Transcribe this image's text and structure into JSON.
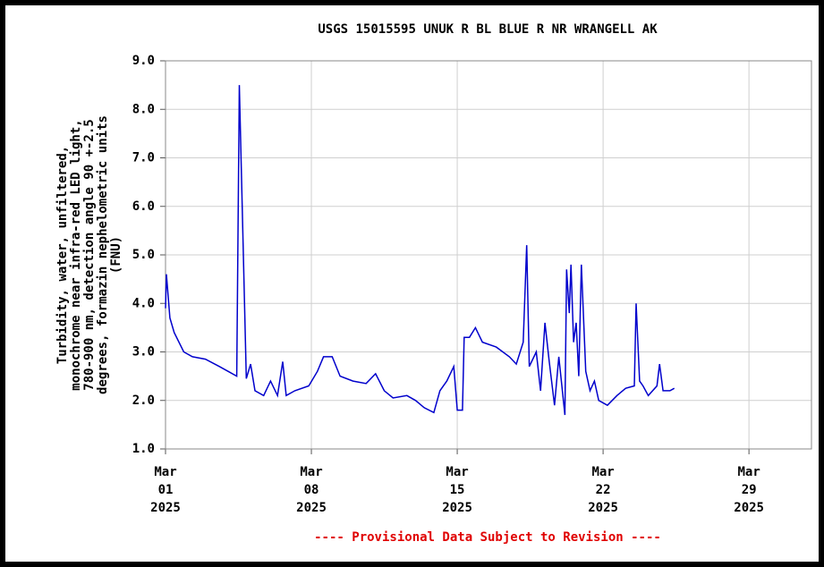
{
  "chart_data": {
    "type": "line",
    "title": "USGS 15015595 UNUK R BL BLUE R NR WRANGELL AK",
    "ylabel": [
      "Turbidity, water, unfiltered,",
      "monochrome near infra-red LED light,",
      "780-900 nm, detection angle 90 +-2.5",
      "degrees, formazin nephelometric units",
      "(FNU)"
    ],
    "footnote": "---- Provisional Data Subject to Revision ----",
    "color": "#0000cc",
    "grid": true,
    "xlim": [
      "2025-03-01T00:00",
      "2025-04-01T00:00"
    ],
    "xticks": [
      {
        "value": "2025-03-01T00:00",
        "label": "Mar 01 2025"
      },
      {
        "value": "2025-03-08T00:00",
        "label": "Mar 08 2025"
      },
      {
        "value": "2025-03-15T00:00",
        "label": "Mar 15 2025"
      },
      {
        "value": "2025-03-22T00:00",
        "label": "Mar 22 2025"
      },
      {
        "value": "2025-03-29T00:00",
        "label": "Mar 29 2025"
      }
    ],
    "ylim": [
      1,
      9
    ],
    "yticks": [
      {
        "value": 1,
        "label": "1.0"
      },
      {
        "value": 2,
        "label": "2.0"
      },
      {
        "value": 3,
        "label": "3.0"
      },
      {
        "value": 4,
        "label": "4.0"
      },
      {
        "value": 5,
        "label": "5.0"
      },
      {
        "value": 6,
        "label": "6.0"
      },
      {
        "value": 7,
        "label": "7.0"
      },
      {
        "value": 8,
        "label": "8.0"
      },
      {
        "value": 9,
        "label": "9.0"
      }
    ],
    "x": [
      "2025-03-01T00:00",
      "2025-03-01T01:00",
      "2025-03-01T05:00",
      "2025-03-01T10:00",
      "2025-03-01T21:00",
      "2025-03-02T07:00",
      "2025-03-02T22:00",
      "2025-03-03T14:00",
      "2025-03-04T00:00",
      "2025-03-04T10:00",
      "2025-03-04T13:00",
      "2025-03-04T21:00",
      "2025-03-05T02:00",
      "2025-03-05T07:00",
      "2025-03-05T17:00",
      "2025-03-06T01:00",
      "2025-03-06T09:00",
      "2025-03-06T15:00",
      "2025-03-06T19:00",
      "2025-03-07T05:00",
      "2025-03-07T21:00",
      "2025-03-08T07:00",
      "2025-03-08T14:00",
      "2025-03-09T00:00",
      "2025-03-09T09:00",
      "2025-03-10T00:00",
      "2025-03-10T15:00",
      "2025-03-11T02:00",
      "2025-03-11T12:00",
      "2025-03-11T22:00",
      "2025-03-12T14:00",
      "2025-03-13T00:00",
      "2025-03-13T10:00",
      "2025-03-13T21:00",
      "2025-03-14T04:00",
      "2025-03-14T12:00",
      "2025-03-14T20:00",
      "2025-03-15T00:00",
      "2025-03-15T06:00",
      "2025-03-15T08:00",
      "2025-03-15T14:00",
      "2025-03-15T21:00",
      "2025-03-16T05:00",
      "2025-03-16T21:00",
      "2025-03-17T12:00",
      "2025-03-17T20:00",
      "2025-03-18T04:00",
      "2025-03-18T08:00",
      "2025-03-18T11:00",
      "2025-03-18T19:00",
      "2025-03-19T00:00",
      "2025-03-19T05:00",
      "2025-03-19T10:00",
      "2025-03-19T16:00",
      "2025-03-19T21:00",
      "2025-03-20T04:00",
      "2025-03-20T06:00",
      "2025-03-20T09:00",
      "2025-03-20T11:00",
      "2025-03-20T14:00",
      "2025-03-20T17:00",
      "2025-03-20T20:00",
      "2025-03-20T23:00",
      "2025-03-21T04:00",
      "2025-03-21T09:00",
      "2025-03-21T14:00",
      "2025-03-21T19:00",
      "2025-03-22T05:00",
      "2025-03-22T16:00",
      "2025-03-23T02:00",
      "2025-03-23T12:00",
      "2025-03-23T14:00",
      "2025-03-23T18:00",
      "2025-03-23T22:00",
      "2025-03-24T04:00",
      "2025-03-24T14:00",
      "2025-03-24T17:00",
      "2025-03-24T21:00",
      "2025-03-25T05:00",
      "2025-03-25T10:00"
    ],
    "values": [
      3.9,
      4.6,
      3.7,
      3.4,
      3.0,
      2.9,
      2.85,
      2.7,
      2.6,
      2.5,
      8.5,
      2.45,
      2.75,
      2.2,
      2.1,
      2.4,
      2.1,
      2.8,
      2.1,
      2.2,
      2.3,
      2.6,
      2.9,
      2.9,
      2.5,
      2.4,
      2.35,
      2.55,
      2.2,
      2.05,
      2.1,
      2.0,
      1.85,
      1.75,
      2.2,
      2.4,
      2.7,
      1.8,
      1.8,
      3.3,
      3.3,
      3.5,
      3.2,
      3.1,
      2.9,
      2.75,
      3.2,
      5.2,
      2.7,
      3.0,
      2.2,
      3.6,
      2.8,
      1.9,
      2.9,
      1.7,
      4.7,
      3.8,
      4.8,
      3.2,
      3.6,
      2.5,
      4.8,
      2.6,
      2.2,
      2.4,
      2.0,
      1.9,
      2.1,
      2.25,
      2.3,
      4.0,
      2.4,
      2.3,
      2.1,
      2.3,
      2.75,
      2.2,
      2.2,
      2.25
    ]
  }
}
